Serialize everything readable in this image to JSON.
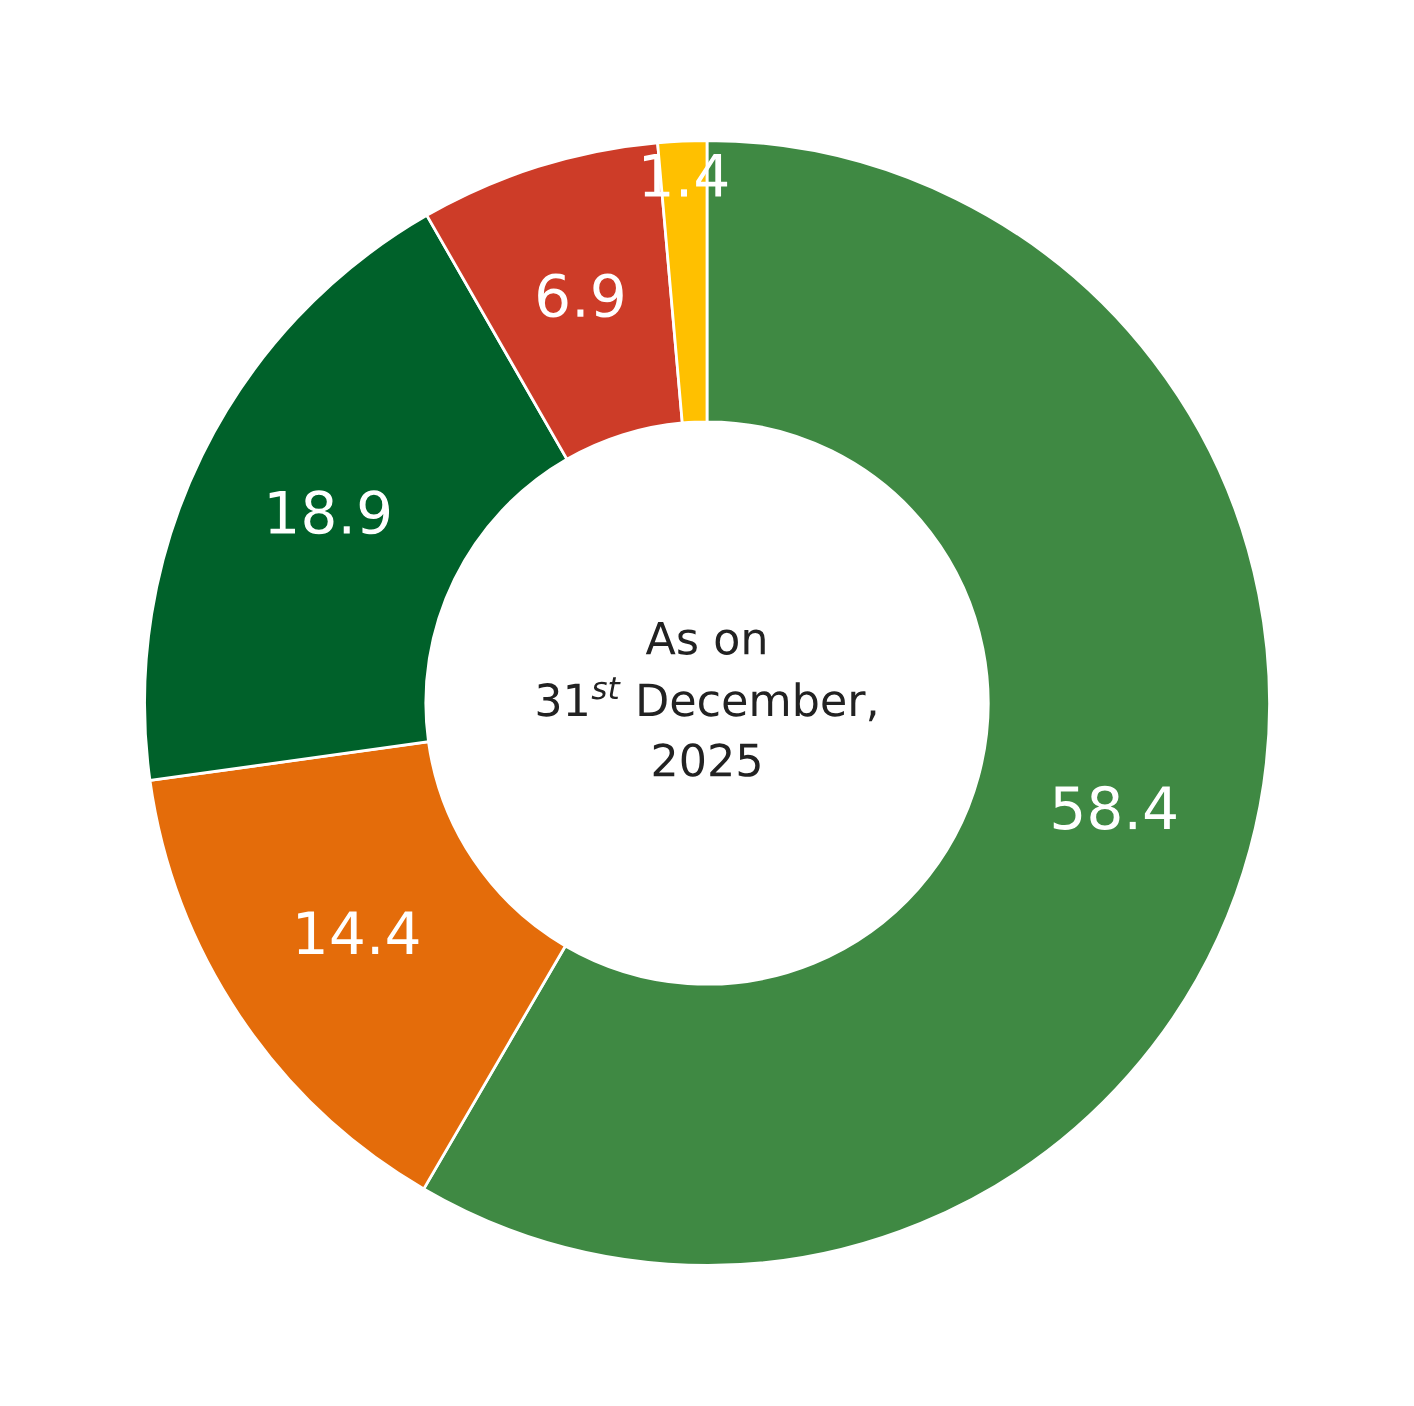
{
  "chart_data": {
    "type": "donut",
    "categories": [
      null,
      null,
      null,
      null,
      null
    ],
    "values": [
      58.4,
      14.4,
      18.9,
      6.9,
      1.4
    ],
    "colors": [
      "#3f8943",
      "#e46c0a",
      "#00612a",
      "#cd3c28",
      "#ffc000"
    ],
    "data_labels": true,
    "annotations": [
      "As on\n31$^{st}$ December,\n2025"
    ]
  }
}
